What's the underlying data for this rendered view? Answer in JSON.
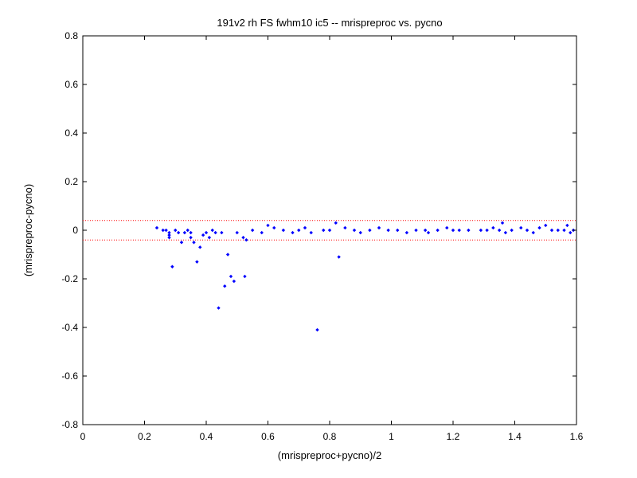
{
  "chart_data": {
    "type": "scatter",
    "title": "191v2 rh FS fwhm10 ic5 -- mrispreproc vs. pycno",
    "xlabel": "(mrispreproc+pycno)/2",
    "ylabel": "(mrispreproc-pycno)",
    "xlim": [
      0,
      1.6
    ],
    "ylim": [
      -0.8,
      0.8
    ],
    "xticks": [
      0,
      0.2,
      0.4,
      0.6,
      0.8,
      1,
      1.2,
      1.4,
      1.6
    ],
    "xtick_labels": [
      "0",
      "0.2",
      "0.4",
      "0.6",
      "0.8",
      "1",
      "1.2",
      "1.4",
      "1.6"
    ],
    "yticks": [
      -0.8,
      -0.6,
      -0.4,
      -0.2,
      0,
      0.2,
      0.4,
      0.6,
      0.8
    ],
    "ytick_labels": [
      "-0.8",
      "-0.6",
      "-0.4",
      "-0.2",
      "0",
      "0.2",
      "0.4",
      "0.6",
      "0.8"
    ],
    "grid": false,
    "marker_color": "#0000ff",
    "reference_lines": {
      "y_values": [
        0.04,
        -0.04
      ],
      "style": "dotted",
      "color": "#ff0000"
    },
    "series": [
      {
        "points": [
          [
            0.24,
            0.01
          ],
          [
            0.26,
            0.0
          ],
          [
            0.27,
            0.0
          ],
          [
            0.28,
            -0.01
          ],
          [
            0.28,
            -0.02
          ],
          [
            0.28,
            -0.03
          ],
          [
            0.29,
            -0.15
          ],
          [
            0.3,
            0.0
          ],
          [
            0.31,
            -0.01
          ],
          [
            0.32,
            -0.05
          ],
          [
            0.33,
            -0.01
          ],
          [
            0.34,
            0.0
          ],
          [
            0.35,
            -0.01
          ],
          [
            0.35,
            -0.03
          ],
          [
            0.36,
            -0.05
          ],
          [
            0.37,
            -0.13
          ],
          [
            0.38,
            -0.07
          ],
          [
            0.39,
            -0.02
          ],
          [
            0.4,
            -0.01
          ],
          [
            0.41,
            -0.03
          ],
          [
            0.42,
            0.0
          ],
          [
            0.43,
            -0.01
          ],
          [
            0.44,
            -0.32
          ],
          [
            0.45,
            -0.01
          ],
          [
            0.46,
            -0.23
          ],
          [
            0.47,
            -0.1
          ],
          [
            0.48,
            -0.19
          ],
          [
            0.49,
            -0.21
          ],
          [
            0.5,
            -0.01
          ],
          [
            0.52,
            -0.03
          ],
          [
            0.525,
            -0.19
          ],
          [
            0.53,
            -0.04
          ],
          [
            0.55,
            0.0
          ],
          [
            0.58,
            -0.01
          ],
          [
            0.6,
            0.02
          ],
          [
            0.62,
            0.01
          ],
          [
            0.65,
            0.0
          ],
          [
            0.68,
            -0.01
          ],
          [
            0.7,
            0.0
          ],
          [
            0.72,
            0.01
          ],
          [
            0.74,
            -0.01
          ],
          [
            0.76,
            -0.41
          ],
          [
            0.78,
            0.0
          ],
          [
            0.8,
            0.0
          ],
          [
            0.82,
            0.03
          ],
          [
            0.83,
            -0.11
          ],
          [
            0.85,
            0.01
          ],
          [
            0.88,
            0.0
          ],
          [
            0.9,
            -0.01
          ],
          [
            0.93,
            0.0
          ],
          [
            0.96,
            0.01
          ],
          [
            0.99,
            0.0
          ],
          [
            1.02,
            0.0
          ],
          [
            1.05,
            -0.01
          ],
          [
            1.08,
            0.0
          ],
          [
            1.11,
            0.0
          ],
          [
            1.12,
            -0.01
          ],
          [
            1.15,
            0.0
          ],
          [
            1.18,
            0.01
          ],
          [
            1.2,
            0.0
          ],
          [
            1.22,
            0.0
          ],
          [
            1.25,
            0.0
          ],
          [
            1.29,
            0.0
          ],
          [
            1.31,
            0.0
          ],
          [
            1.33,
            0.01
          ],
          [
            1.35,
            0.0
          ],
          [
            1.36,
            0.03
          ],
          [
            1.37,
            -0.01
          ],
          [
            1.39,
            0.0
          ],
          [
            1.42,
            0.01
          ],
          [
            1.44,
            0.0
          ],
          [
            1.46,
            -0.01
          ],
          [
            1.48,
            0.01
          ],
          [
            1.5,
            0.02
          ],
          [
            1.52,
            0.0
          ],
          [
            1.54,
            0.0
          ],
          [
            1.56,
            0.0
          ],
          [
            1.57,
            0.02
          ],
          [
            1.58,
            -0.01
          ],
          [
            1.59,
            0.0
          ]
        ]
      }
    ]
  }
}
